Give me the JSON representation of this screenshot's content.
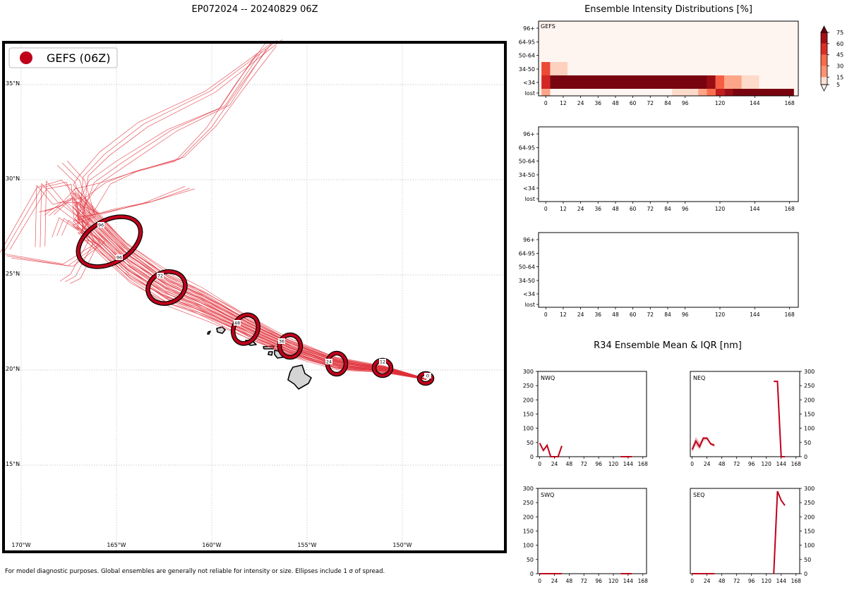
{
  "map": {
    "title": "EP072024 -- 20240829 06Z",
    "legend_label": "GEFS (06Z)",
    "lon_labels": [
      "170°W",
      "165°W",
      "160°W",
      "155°W",
      "150°W"
    ],
    "lat_labels": [
      "15°N",
      "20°N",
      "25°N",
      "30°N",
      "35°N"
    ],
    "ellipse_labels": [
      "0",
      "12",
      "24",
      "36",
      "48",
      "72",
      "96",
      "96"
    ],
    "footer": "For model diagnostic purposes. Global ensembles are generally not reliable for intensity or size. Ellipses include 1 σ of spread.",
    "colors": {
      "track": "#e0303a",
      "ellipse": "#c0001a"
    }
  },
  "intensity": {
    "title": "Ensemble Intensity Distributions [%]",
    "model_label": "GEFS",
    "y_labels": [
      "96+",
      "64-95",
      "50-64",
      "34-50",
      "<34",
      "lost"
    ],
    "x_labels": [
      "0",
      "12",
      "24",
      "36",
      "48",
      "60",
      "72",
      "84",
      "96",
      "120",
      "144",
      "168"
    ],
    "colorbar_labels": [
      "75",
      "60",
      "45",
      "30",
      "15",
      "5"
    ]
  },
  "r34": {
    "title": "R34 Ensemble Mean & IQR [nm]",
    "y_labels": [
      "300",
      "250",
      "200",
      "150",
      "100",
      "50",
      "0"
    ],
    "x_labels": [
      "0",
      "24",
      "48",
      "72",
      "96",
      "120",
      "144",
      "168"
    ],
    "panels": [
      "NWQ",
      "NEQ",
      "SWQ",
      "SEQ"
    ]
  },
  "chart_data": [
    {
      "type": "heatmap",
      "title": "Ensemble Intensity Distributions [%]",
      "model": "GEFS",
      "xlabel": "",
      "ylabel": "",
      "x": [
        0,
        12,
        24,
        36,
        48,
        60,
        72,
        84,
        96,
        120,
        144,
        168
      ],
      "rows": [
        "96+",
        "64-95",
        "50-64",
        "34-50",
        "<34",
        "lost"
      ],
      "cells": [
        {
          "row": "34-50",
          "x0": -3,
          "x1": 3,
          "value": 60
        },
        {
          "row": "34-50",
          "x0": 3,
          "x1": 15,
          "value": 15
        },
        {
          "row": "<34",
          "x0": -3,
          "x1": 3,
          "value": 70
        },
        {
          "row": "<34",
          "x0": 3,
          "x1": 111,
          "value": 95
        },
        {
          "row": "<34",
          "x0": 111,
          "x1": 117,
          "value": 85
        },
        {
          "row": "<34",
          "x0": 117,
          "x1": 123,
          "value": 55
        },
        {
          "row": "<34",
          "x0": 123,
          "x1": 135,
          "value": 30
        },
        {
          "row": "<34",
          "x0": 135,
          "x1": 147,
          "value": 12
        },
        {
          "row": "lost",
          "x0": -3,
          "x1": 3,
          "value": 30
        },
        {
          "row": "lost",
          "x0": 87,
          "x1": 105,
          "value": 12
        },
        {
          "row": "lost",
          "x0": 105,
          "x1": 111,
          "value": 30
        },
        {
          "row": "lost",
          "x0": 111,
          "x1": 117,
          "value": 50
        },
        {
          "row": "lost",
          "x0": 117,
          "x1": 123,
          "value": 75
        },
        {
          "row": "lost",
          "x0": 123,
          "x1": 129,
          "value": 85
        },
        {
          "row": "lost",
          "x0": 129,
          "x1": 171,
          "value": 95
        }
      ],
      "colorbar_ticks": [
        5,
        15,
        30,
        45,
        60,
        75
      ]
    },
    {
      "type": "heatmap",
      "title": "",
      "x": [
        0,
        12,
        24,
        36,
        48,
        60,
        72,
        84,
        96,
        120,
        144,
        168
      ],
      "rows": [
        "96+",
        "64-95",
        "50-64",
        "34-50",
        "<34",
        "lost"
      ],
      "cells": []
    },
    {
      "type": "heatmap",
      "title": "",
      "x": [
        0,
        12,
        24,
        36,
        48,
        60,
        72,
        84,
        96,
        120,
        144,
        168
      ],
      "rows": [
        "96+",
        "64-95",
        "50-64",
        "34-50",
        "<34",
        "lost"
      ],
      "cells": []
    },
    {
      "type": "line",
      "title": "R34 Ensemble Mean & IQR [nm]",
      "panels": [
        {
          "name": "NWQ",
          "xlim": [
            -3,
            174
          ],
          "ylim": [
            0,
            300
          ],
          "mean": [
            [
              0,
              48
            ],
            [
              6,
              22
            ],
            [
              12,
              40
            ],
            [
              18,
              0
            ],
            [
              24,
              0
            ],
            [
              30,
              0
            ],
            [
              36,
              38
            ]
          ],
          "iqr": [],
          "extra": [
            [
              [
                132,
                0
              ],
              [
                150,
                0
              ]
            ]
          ]
        },
        {
          "name": "NEQ",
          "xlim": [
            -3,
            174
          ],
          "ylim": [
            0,
            300
          ],
          "mean": [
            [
              0,
              25
            ],
            [
              6,
              55
            ],
            [
              12,
              35
            ],
            [
              18,
              65
            ],
            [
              24,
              65
            ],
            [
              30,
              45
            ],
            [
              36,
              40
            ]
          ],
          "iqr": [
            [
              0,
              15,
              35
            ],
            [
              6,
              40,
              70
            ],
            [
              12,
              25,
              50
            ],
            [
              18,
              55,
              70
            ],
            [
              24,
              60,
              70
            ],
            [
              30,
              40,
              50
            ],
            [
              36,
              35,
              45
            ]
          ],
          "extra": [
            [
              [
                132,
                265
              ],
              [
                138,
                265
              ],
              [
                144,
                0
              ],
              [
                150,
                0
              ]
            ]
          ]
        },
        {
          "name": "SWQ",
          "xlim": [
            -3,
            174
          ],
          "ylim": [
            0,
            300
          ],
          "mean": [
            [
              0,
              0
            ],
            [
              6,
              0
            ],
            [
              12,
              0
            ],
            [
              18,
              0
            ],
            [
              24,
              0
            ],
            [
              30,
              0
            ],
            [
              36,
              0
            ]
          ],
          "iqr": [],
          "extra": [
            [
              [
                132,
                0
              ],
              [
                150,
                0
              ]
            ]
          ]
        },
        {
          "name": "SEQ",
          "xlim": [
            -3,
            174
          ],
          "ylim": [
            0,
            300
          ],
          "mean": [
            [
              0,
              0
            ],
            [
              6,
              0
            ],
            [
              12,
              0
            ],
            [
              18,
              0
            ],
            [
              24,
              0
            ],
            [
              30,
              0
            ],
            [
              36,
              0
            ]
          ],
          "iqr": [],
          "extra": [
            [
              [
                132,
                0
              ],
              [
                138,
                290
              ],
              [
                144,
                258
              ],
              [
                150,
                240
              ]
            ]
          ]
        }
      ]
    }
  ]
}
